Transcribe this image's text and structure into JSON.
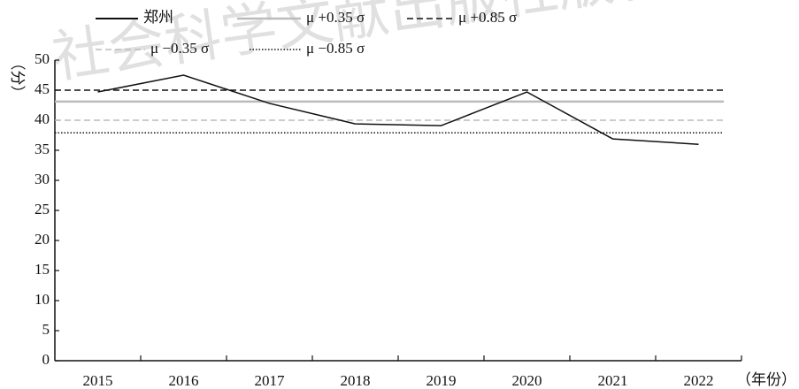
{
  "chart_data": {
    "type": "line",
    "watermark": "社会科学文献出版社版权",
    "y_label": "（分）",
    "x_label": "（年份）",
    "categories": [
      "2015",
      "2016",
      "2017",
      "2018",
      "2019",
      "2020",
      "2021",
      "2022"
    ],
    "series": [
      {
        "name": "郑州",
        "color": "#111111",
        "values": [
          44.7,
          47.5,
          42.8,
          39.4,
          39.1,
          44.7,
          36.9,
          36.0
        ]
      }
    ],
    "reference_lines": [
      {
        "name": "μ +0.35 σ",
        "value": 43.1,
        "color": "#bbbbbb",
        "style": "solid"
      },
      {
        "name": "μ +0.85 σ",
        "value": 45.0,
        "color": "#111111",
        "style": "dashed"
      },
      {
        "name": "μ −0.35 σ",
        "value": 40.0,
        "color": "#bbbbbb",
        "style": "dashed"
      },
      {
        "name": "μ −0.85 σ",
        "value": 37.9,
        "color": "#111111",
        "style": "dotted"
      }
    ],
    "ylim": [
      0,
      50
    ],
    "yticks": [
      0,
      5,
      10,
      15,
      20,
      25,
      30,
      35,
      40,
      45,
      50
    ]
  }
}
